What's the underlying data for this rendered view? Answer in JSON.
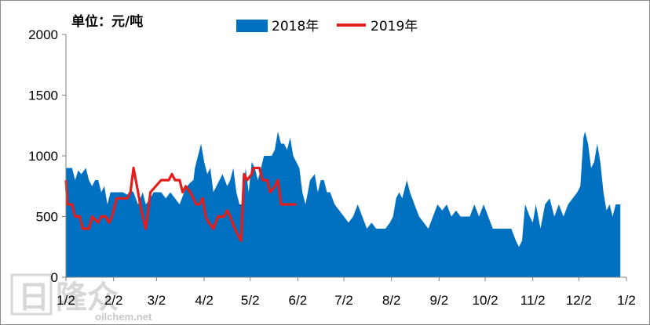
{
  "chart_data": {
    "type": "area",
    "title": "",
    "unit_label": "单位：元/吨",
    "xlabel": "",
    "ylabel": "",
    "ylim": [
      0,
      2000
    ],
    "y_ticks": [
      "0",
      "500",
      "1000",
      "1500",
      "2000"
    ],
    "x_range": [
      "2018-01-02",
      "2019-01-02"
    ],
    "x_ticks": [
      {
        "label": "1/2",
        "date": "2018-01-02"
      },
      {
        "label": "2/2",
        "date": "2018-02-02"
      },
      {
        "label": "3/2",
        "date": "2018-03-02"
      },
      {
        "label": "4/2",
        "date": "2018-04-02"
      },
      {
        "label": "5/2",
        "date": "2018-05-02"
      },
      {
        "label": "6/2",
        "date": "2018-06-02"
      },
      {
        "label": "7/2",
        "date": "2018-07-02"
      },
      {
        "label": "8/2",
        "date": "2018-08-02"
      },
      {
        "label": "9/2",
        "date": "2018-09-02"
      },
      {
        "label": "10/2",
        "date": "2018-10-02"
      },
      {
        "label": "11/2",
        "date": "2018-11-02"
      },
      {
        "label": "12/2",
        "date": "2018-12-02"
      },
      {
        "label": "1/2",
        "date": "2019-01-02"
      }
    ],
    "grid": false,
    "legend_position": "top",
    "series": [
      {
        "name": "2018年",
        "kind": "area",
        "color": "#0070c0",
        "points": [
          [
            "01-02",
            900
          ],
          [
            "01-06",
            900
          ],
          [
            "01-08",
            800
          ],
          [
            "01-10",
            880
          ],
          [
            "01-12",
            850
          ],
          [
            "01-15",
            900
          ],
          [
            "01-17",
            800
          ],
          [
            "01-19",
            750
          ],
          [
            "01-21",
            800
          ],
          [
            "01-23",
            800
          ],
          [
            "01-25",
            700
          ],
          [
            "01-27",
            750
          ],
          [
            "01-29",
            600
          ],
          [
            "01-31",
            700
          ],
          [
            "02-02",
            700
          ],
          [
            "02-05",
            700
          ],
          [
            "02-08",
            700
          ],
          [
            "02-11",
            680
          ],
          [
            "02-13",
            720
          ],
          [
            "02-15",
            700
          ],
          [
            "02-18",
            600
          ],
          [
            "02-21",
            700
          ],
          [
            "02-23",
            600
          ],
          [
            "02-26",
            650
          ],
          [
            "02-28",
            700
          ],
          [
            "03-02",
            700
          ],
          [
            "03-05",
            700
          ],
          [
            "03-08",
            650
          ],
          [
            "03-11",
            700
          ],
          [
            "03-14",
            650
          ],
          [
            "03-17",
            600
          ],
          [
            "03-20",
            700
          ],
          [
            "03-22",
            750
          ],
          [
            "03-24",
            780
          ],
          [
            "03-26",
            800
          ],
          [
            "03-27",
            900
          ],
          [
            "03-29",
            1000
          ],
          [
            "03-31",
            1100
          ],
          [
            "04-02",
            950
          ],
          [
            "04-04",
            850
          ],
          [
            "04-06",
            900
          ],
          [
            "04-08",
            700
          ],
          [
            "04-10",
            750
          ],
          [
            "04-12",
            800
          ],
          [
            "04-14",
            850
          ],
          [
            "04-17",
            750
          ],
          [
            "04-19",
            800
          ],
          [
            "04-21",
            900
          ],
          [
            "04-23",
            700
          ],
          [
            "04-25",
            600
          ],
          [
            "04-27",
            600
          ],
          [
            "04-29",
            900
          ],
          [
            "05-01",
            700
          ],
          [
            "05-03",
            950
          ],
          [
            "05-05",
            900
          ],
          [
            "05-07",
            800
          ],
          [
            "05-09",
            900
          ],
          [
            "05-11",
            1000
          ],
          [
            "05-14",
            1000
          ],
          [
            "05-16",
            1000
          ],
          [
            "05-18",
            1050
          ],
          [
            "05-20",
            1200
          ],
          [
            "05-22",
            1100
          ],
          [
            "05-24",
            1100
          ],
          [
            "05-26",
            1050
          ],
          [
            "05-28",
            1150
          ],
          [
            "05-30",
            1000
          ],
          [
            "06-01",
            950
          ],
          [
            "06-03",
            900
          ],
          [
            "06-05",
            700
          ],
          [
            "06-07",
            600
          ],
          [
            "06-10",
            800
          ],
          [
            "06-13",
            850
          ],
          [
            "06-15",
            700
          ],
          [
            "06-17",
            800
          ],
          [
            "06-19",
            800
          ],
          [
            "06-21",
            700
          ],
          [
            "06-23",
            700
          ],
          [
            "06-26",
            600
          ],
          [
            "06-29",
            550
          ],
          [
            "07-02",
            500
          ],
          [
            "07-05",
            450
          ],
          [
            "07-08",
            500
          ],
          [
            "07-11",
            600
          ],
          [
            "07-14",
            500
          ],
          [
            "07-17",
            400
          ],
          [
            "07-20",
            450
          ],
          [
            "07-23",
            400
          ],
          [
            "07-26",
            400
          ],
          [
            "07-29",
            400
          ],
          [
            "08-01",
            450
          ],
          [
            "08-03",
            500
          ],
          [
            "08-05",
            650
          ],
          [
            "08-07",
            700
          ],
          [
            "08-09",
            650
          ],
          [
            "08-12",
            800
          ],
          [
            "08-14",
            700
          ],
          [
            "08-17",
            600
          ],
          [
            "08-20",
            500
          ],
          [
            "08-23",
            450
          ],
          [
            "08-26",
            400
          ],
          [
            "08-29",
            500
          ],
          [
            "09-01",
            600
          ],
          [
            "09-04",
            550
          ],
          [
            "09-07",
            600
          ],
          [
            "09-10",
            500
          ],
          [
            "09-13",
            550
          ],
          [
            "09-16",
            500
          ],
          [
            "09-19",
            500
          ],
          [
            "09-22",
            500
          ],
          [
            "09-25",
            600
          ],
          [
            "09-28",
            500
          ],
          [
            "10-01",
            600
          ],
          [
            "10-04",
            500
          ],
          [
            "10-07",
            400
          ],
          [
            "10-10",
            400
          ],
          [
            "10-13",
            400
          ],
          [
            "10-16",
            400
          ],
          [
            "10-19",
            400
          ],
          [
            "10-22",
            300
          ],
          [
            "10-24",
            250
          ],
          [
            "10-26",
            300
          ],
          [
            "10-28",
            600
          ],
          [
            "10-31",
            500
          ],
          [
            "11-02",
            450
          ],
          [
            "11-04",
            600
          ],
          [
            "11-07",
            400
          ],
          [
            "11-10",
            600
          ],
          [
            "11-13",
            650
          ],
          [
            "11-16",
            500
          ],
          [
            "11-19",
            600
          ],
          [
            "11-22",
            500
          ],
          [
            "11-25",
            600
          ],
          [
            "11-28",
            650
          ],
          [
            "12-01",
            700
          ],
          [
            "12-03",
            750
          ],
          [
            "12-05",
            1150
          ],
          [
            "12-06",
            1200
          ],
          [
            "12-08",
            1100
          ],
          [
            "12-10",
            900
          ],
          [
            "12-12",
            950
          ],
          [
            "12-14",
            1100
          ],
          [
            "12-16",
            950
          ],
          [
            "12-18",
            700
          ],
          [
            "12-20",
            550
          ],
          [
            "12-22",
            600
          ],
          [
            "12-24",
            500
          ],
          [
            "12-26",
            600
          ],
          [
            "12-29",
            600
          ]
        ]
      },
      {
        "name": "2019年",
        "kind": "line",
        "color": "#e31c1c",
        "points": [
          [
            "01-02",
            800
          ],
          [
            "01-03",
            600
          ],
          [
            "01-06",
            600
          ],
          [
            "01-08",
            500
          ],
          [
            "01-11",
            500
          ],
          [
            "01-13",
            400
          ],
          [
            "01-17",
            400
          ],
          [
            "01-19",
            500
          ],
          [
            "01-23",
            450
          ],
          [
            "01-25",
            500
          ],
          [
            "01-28",
            500
          ],
          [
            "01-30",
            450
          ],
          [
            "02-01",
            500
          ],
          [
            "02-04",
            650
          ],
          [
            "02-11",
            650
          ],
          [
            "02-13",
            700
          ],
          [
            "02-15",
            900
          ],
          [
            "02-18",
            700
          ],
          [
            "02-20",
            550
          ],
          [
            "02-23",
            400
          ],
          [
            "02-26",
            700
          ],
          [
            "03-05",
            800
          ],
          [
            "03-10",
            800
          ],
          [
            "03-12",
            850
          ],
          [
            "03-14",
            800
          ],
          [
            "03-17",
            800
          ],
          [
            "03-19",
            700
          ],
          [
            "03-21",
            750
          ],
          [
            "03-24",
            700
          ],
          [
            "03-26",
            650
          ],
          [
            "03-28",
            600
          ],
          [
            "03-30",
            600
          ],
          [
            "04-01",
            650
          ],
          [
            "04-03",
            500
          ],
          [
            "04-05",
            450
          ],
          [
            "04-08",
            400
          ],
          [
            "04-11",
            500
          ],
          [
            "04-15",
            500
          ],
          [
            "04-17",
            550
          ],
          [
            "04-19",
            500
          ],
          [
            "04-22",
            400
          ],
          [
            "04-24",
            350
          ],
          [
            "04-26",
            300
          ],
          [
            "04-28",
            850
          ],
          [
            "04-30",
            800
          ],
          [
            "05-03",
            850
          ],
          [
            "05-04",
            900
          ],
          [
            "05-08",
            900
          ],
          [
            "05-10",
            800
          ],
          [
            "05-13",
            800
          ],
          [
            "05-15",
            700
          ],
          [
            "05-18",
            750
          ],
          [
            "05-20",
            800
          ],
          [
            "05-22",
            600
          ],
          [
            "05-28",
            600
          ],
          [
            "06-01",
            600
          ]
        ]
      }
    ]
  },
  "watermark": {
    "logo_text": "隆众",
    "site": "oilchem.net"
  }
}
